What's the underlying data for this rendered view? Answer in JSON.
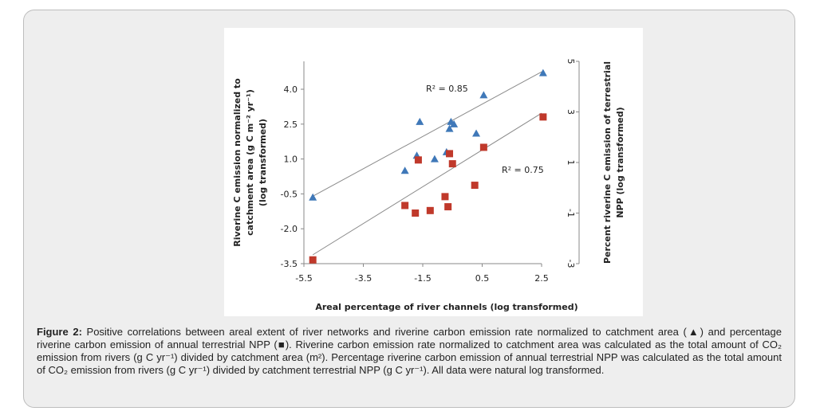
{
  "chart_data": {
    "type": "scatter",
    "xlabel": "Areal percentage of river channels (log transformed)",
    "ylabel": "Riverine C emission normalized to catchment area (g C m⁻² yr⁻¹) (log transformed)",
    "y2label": "Percent riverine C emission of terrestrial NPP (log transformed)",
    "xlim": [
      -5.5,
      2.5
    ],
    "ylim": [
      -3.5,
      5.2
    ],
    "y2lim": [
      -3,
      5
    ],
    "x_ticks": [
      "-5.5",
      "-3.5",
      "-1.5",
      "0.5",
      "2.5"
    ],
    "y_ticks": [
      "4.0",
      "2.5",
      "1.0",
      "-0.5",
      "-2.0",
      "-3.5"
    ],
    "y2_ticks": [
      "5",
      "3",
      "1",
      "-1",
      "-3"
    ],
    "series": [
      {
        "name": "Riverine carbon emission normalized to catchment area",
        "marker": "triangle",
        "color": "#3f78b8",
        "axis": "left",
        "points": [
          {
            "x": -5.2,
            "y": -0.65
          },
          {
            "x": -2.1,
            "y": 0.5
          },
          {
            "x": -1.7,
            "y": 1.15
          },
          {
            "x": -1.6,
            "y": 2.6
          },
          {
            "x": -1.1,
            "y": 1.0
          },
          {
            "x": -0.7,
            "y": 1.3
          },
          {
            "x": -0.6,
            "y": 2.3
          },
          {
            "x": -0.55,
            "y": 2.6
          },
          {
            "x": -0.45,
            "y": 2.5
          },
          {
            "x": 0.3,
            "y": 2.1
          },
          {
            "x": 0.55,
            "y": 3.75
          },
          {
            "x": 2.55,
            "y": 4.7
          }
        ],
        "trendline": {
          "x": [
            -5.2,
            2.5
          ],
          "y": [
            -0.6,
            4.75
          ]
        },
        "r2_label": "R² = 0.85"
      },
      {
        "name": "Percentage riverine carbon emission of annual terrestrial NPP",
        "marker": "square",
        "color": "#c0392b",
        "axis": "right",
        "points": [
          {
            "x": -5.2,
            "y": -2.85
          },
          {
            "x": -2.1,
            "y": -0.7
          },
          {
            "x": -1.75,
            "y": -1.0
          },
          {
            "x": -1.65,
            "y": 1.1
          },
          {
            "x": -1.25,
            "y": -0.9
          },
          {
            "x": -0.75,
            "y": -0.35
          },
          {
            "x": -0.65,
            "y": -0.75
          },
          {
            "x": -0.6,
            "y": 1.35
          },
          {
            "x": -0.5,
            "y": 0.95
          },
          {
            "x": 0.25,
            "y": 0.1
          },
          {
            "x": 0.55,
            "y": 1.6
          },
          {
            "x": 2.55,
            "y": 2.8
          }
        ],
        "trendline": {
          "x": [
            -5.2,
            2.5
          ],
          "y": [
            -2.65,
            2.95
          ]
        },
        "r2_label": "R² = 0.75"
      }
    ]
  },
  "caption": {
    "label": "Figure 2:",
    "text": " Positive correlations between areal extent of river networks and riverine carbon emission rate normalized to catchment area (▲) and percentage riverine carbon emission of annual terrestrial NPP (■). Riverine carbon emission rate normalized to catchment area was calculated as the total amount of CO₂ emission from rivers (g C yr⁻¹) divided by catchment area (m²). Percentage riverine carbon emission of annual terrestrial NPP was calculated as the total amount of CO₂ emission from rivers (g C yr⁻¹) divided by catchment terrestrial NPP (g C yr⁻¹). All data were natural log transformed."
  }
}
